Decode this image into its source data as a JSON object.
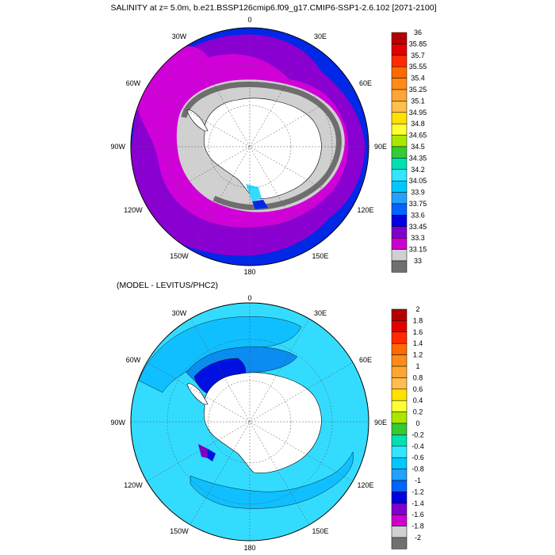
{
  "title": "SALINITY at z=   5.0m, b.e21.BSSP126cmip6.f09_g17.CMIP6-SSP1-2.6.102 [2071-2100]",
  "subtitle": "(MODEL - LEVITUS/PHC2)",
  "projection": "south-polar stereographic",
  "lon_labels": {
    "top": "0",
    "top_right": "30E",
    "right_upper": "60E",
    "right": "90E",
    "right_lower": "120E",
    "bottom_right": "150E",
    "bottom": "180",
    "bottom_left": "150W",
    "left_lower": "120W",
    "left": "90W",
    "left_upper": "60W",
    "top_left": "30W"
  },
  "colorbar_top": {
    "labels": [
      "36",
      "35.85",
      "35.7",
      "35.55",
      "35.4",
      "35.25",
      "35.1",
      "34.95",
      "34.8",
      "34.65",
      "34.5",
      "34.35",
      "34.2",
      "34.05",
      "33.9",
      "33.75",
      "33.6",
      "33.45",
      "33.3",
      "33.15",
      "33"
    ],
    "colors": [
      "#b40000",
      "#e00000",
      "#ff2a00",
      "#ff6a00",
      "#ff8c1a",
      "#ffa533",
      "#ffbe4d",
      "#ffe000",
      "#ffff33",
      "#a8e800",
      "#33cc33",
      "#00e0b0",
      "#33e6ff",
      "#00c8ff",
      "#24a0ff",
      "#0064ff",
      "#0000e0",
      "#8000cc",
      "#cc00cc",
      "#d0d0d0",
      "#707070"
    ]
  },
  "colorbar_bottom": {
    "labels": [
      "2",
      "1.8",
      "1.6",
      "1.4",
      "1.2",
      "1",
      "0.8",
      "0.6",
      "0.4",
      "0.2",
      "0",
      "-0.2",
      "-0.4",
      "-0.6",
      "-0.8",
      "-1",
      "-1.2",
      "-1.4",
      "-1.6",
      "-1.8",
      "-2"
    ],
    "colors": [
      "#b40000",
      "#e00000",
      "#ff2a00",
      "#ff6a00",
      "#ff8c1a",
      "#ffa533",
      "#ffbe4d",
      "#ffe000",
      "#ffff33",
      "#a8e800",
      "#33cc33",
      "#00e0b0",
      "#33e6ff",
      "#00c8ff",
      "#24a0ff",
      "#0064ff",
      "#0000e0",
      "#8000cc",
      "#cc00cc",
      "#d0d0d0",
      "#707070"
    ]
  },
  "map_colors": {
    "ocean_outer_top": "#0028e6",
    "ocean_mid_top": "#8a00d0",
    "ocean_inner_top": "#d000d8",
    "shelf_top": "#d0d0d0",
    "coast_top": "#6e6e6e",
    "land": "#ffffff",
    "ocean_bottom_main": "#33dcff",
    "ocean_bottom_mid": "#10bfff",
    "ocean_bottom_dark": "#0a8cf0",
    "ocean_bottom_deep": "#0010e0",
    "ocean_bottom_purple": "#7a00c8"
  }
}
